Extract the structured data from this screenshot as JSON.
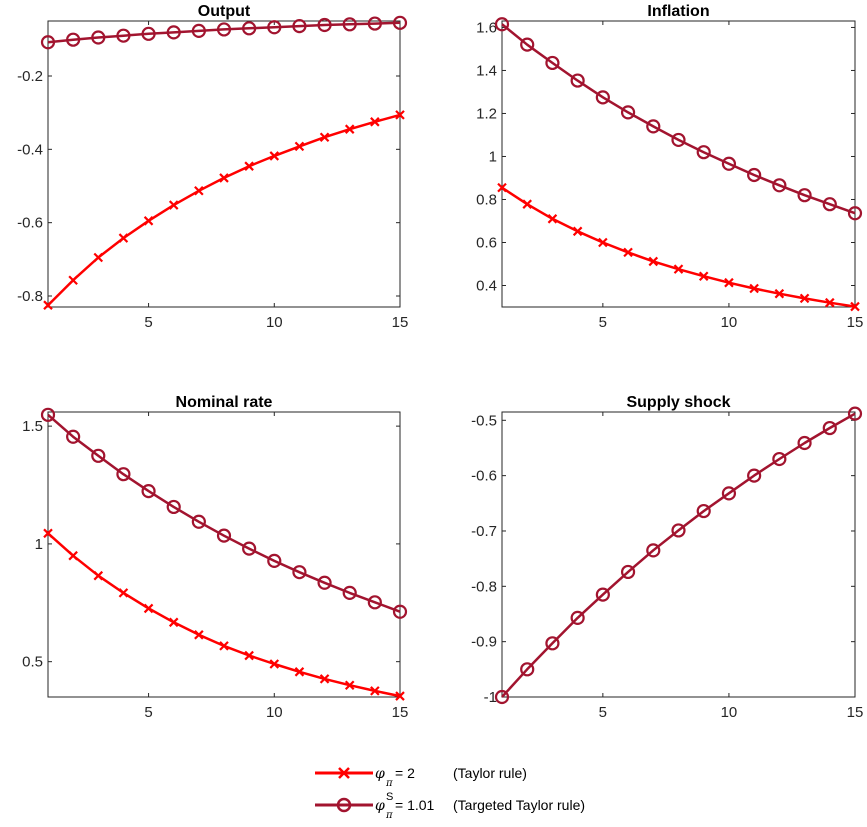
{
  "colors": {
    "taylor": "#ff0000",
    "targeted": "#a2142f",
    "axis": "#262626"
  },
  "legend": {
    "placement": "bottom-center",
    "items": [
      {
        "series": "taylor",
        "marker": "x",
        "symbol": "φ",
        "subscript": "π",
        "superscript": "",
        "value": "= 2",
        "description": "(Taylor rule)"
      },
      {
        "series": "targeted",
        "marker": "o",
        "symbol": "φ",
        "subscript": "π",
        "superscript": "S",
        "value": "= 1.01",
        "description": "(Targeted Taylor rule)"
      }
    ]
  },
  "chart_data": [
    {
      "type": "line",
      "title": "Output",
      "x": [
        1,
        2,
        3,
        4,
        5,
        6,
        7,
        8,
        9,
        10,
        11,
        12,
        13,
        14,
        15
      ],
      "xlim": [
        1,
        15
      ],
      "ylim": [
        -0.83,
        -0.05
      ],
      "xticks": [
        5,
        10,
        15
      ],
      "xtick_labels": [
        "5",
        "10",
        "15"
      ],
      "yticks": [
        -0.8,
        -0.6,
        -0.4,
        -0.2
      ],
      "ytick_labels": [
        "-0.8",
        "-0.6",
        "-0.4",
        "-0.2"
      ],
      "grid": false,
      "series": [
        {
          "key": "taylor",
          "values": [
            -0.825,
            -0.757,
            -0.695,
            -0.642,
            -0.595,
            -0.552,
            -0.513,
            -0.478,
            -0.446,
            -0.418,
            -0.392,
            -0.367,
            -0.345,
            -0.325,
            -0.306
          ]
        },
        {
          "key": "targeted",
          "values": [
            -0.108,
            -0.101,
            -0.095,
            -0.09,
            -0.085,
            -0.081,
            -0.077,
            -0.073,
            -0.07,
            -0.067,
            -0.064,
            -0.061,
            -0.059,
            -0.057,
            -0.055
          ]
        }
      ]
    },
    {
      "type": "line",
      "title": "Inflation",
      "x": [
        1,
        2,
        3,
        4,
        5,
        6,
        7,
        8,
        9,
        10,
        11,
        12,
        13,
        14,
        15
      ],
      "xlim": [
        1,
        15
      ],
      "ylim": [
        0.3,
        1.63
      ],
      "xticks": [
        5,
        10,
        15
      ],
      "xtick_labels": [
        "5",
        "10",
        "15"
      ],
      "yticks": [
        0.4,
        0.6,
        0.8,
        1.0,
        1.2,
        1.4,
        1.6
      ],
      "ytick_labels": [
        "0.4",
        "0.6",
        "0.8",
        "1",
        "1.2",
        "1.4",
        "1.6"
      ],
      "grid": false,
      "series": [
        {
          "key": "taylor",
          "values": [
            0.855,
            0.778,
            0.71,
            0.652,
            0.6,
            0.554,
            0.512,
            0.476,
            0.443,
            0.413,
            0.386,
            0.362,
            0.34,
            0.32,
            0.302
          ]
        },
        {
          "key": "targeted",
          "values": [
            1.615,
            1.52,
            1.435,
            1.353,
            1.275,
            1.205,
            1.14,
            1.077,
            1.02,
            0.966,
            0.914,
            0.866,
            0.82,
            0.778,
            0.736
          ]
        }
      ]
    },
    {
      "type": "line",
      "title": "Nominal rate",
      "x": [
        1,
        2,
        3,
        4,
        5,
        6,
        7,
        8,
        9,
        10,
        11,
        12,
        13,
        14,
        15
      ],
      "xlim": [
        1,
        15
      ],
      "ylim": [
        0.35,
        1.56
      ],
      "xticks": [
        5,
        10,
        15
      ],
      "xtick_labels": [
        "5",
        "10",
        "15"
      ],
      "yticks": [
        0.5,
        1.0,
        1.5
      ],
      "ytick_labels": [
        "0.5",
        "1",
        "1.5"
      ],
      "grid": false,
      "series": [
        {
          "key": "taylor",
          "values": [
            1.045,
            0.95,
            0.865,
            0.792,
            0.726,
            0.667,
            0.614,
            0.567,
            0.526,
            0.49,
            0.457,
            0.427,
            0.4,
            0.376,
            0.354
          ]
        },
        {
          "key": "targeted",
          "values": [
            1.548,
            1.455,
            1.374,
            1.296,
            1.224,
            1.157,
            1.094,
            1.035,
            0.98,
            0.928,
            0.88,
            0.835,
            0.792,
            0.752,
            0.712
          ]
        }
      ]
    },
    {
      "type": "line",
      "title": "Supply shock",
      "x": [
        1,
        2,
        3,
        4,
        5,
        6,
        7,
        8,
        9,
        10,
        11,
        12,
        13,
        14,
        15
      ],
      "xlim": [
        1,
        15
      ],
      "ylim": [
        -1.0,
        -0.485
      ],
      "xticks": [
        5,
        10,
        15
      ],
      "xtick_labels": [
        "5",
        "10",
        "15"
      ],
      "yticks": [
        -1.0,
        -0.9,
        -0.8,
        -0.7,
        -0.6,
        -0.5
      ],
      "ytick_labels": [
        "-1",
        "-0.9",
        "-0.8",
        "-0.7",
        "-0.6",
        "-0.5"
      ],
      "grid": false,
      "series": [
        {
          "key": "targeted",
          "values": [
            -1.0,
            -0.95,
            -0.903,
            -0.857,
            -0.815,
            -0.774,
            -0.735,
            -0.699,
            -0.664,
            -0.632,
            -0.6,
            -0.57,
            -0.541,
            -0.514,
            -0.488
          ]
        }
      ]
    }
  ]
}
